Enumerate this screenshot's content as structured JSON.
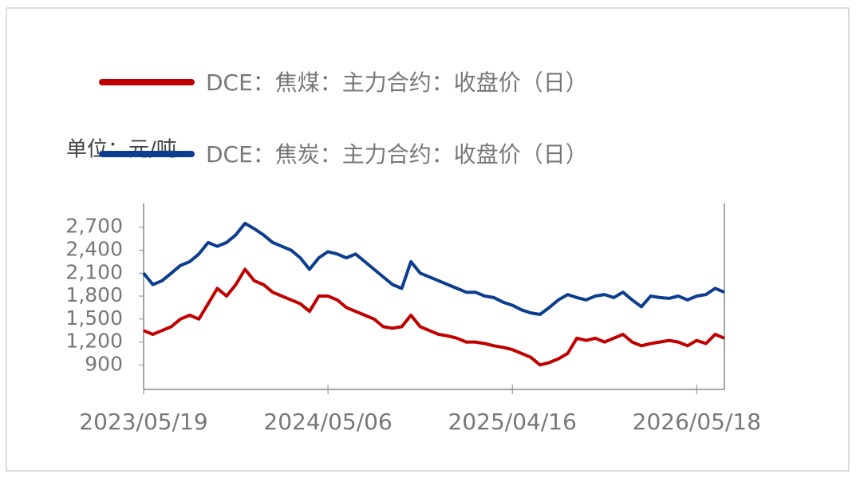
{
  "chart_data": {
    "type": "line",
    "y_label": "单位：元/吨",
    "categories": [
      "2023/05/19",
      null,
      null,
      null,
      null,
      null,
      null,
      null,
      null,
      null,
      null,
      null,
      null,
      null,
      null,
      null,
      null,
      null,
      null,
      null,
      "2024/05/06",
      null,
      null,
      null,
      null,
      null,
      null,
      null,
      null,
      null,
      null,
      null,
      null,
      null,
      null,
      null,
      null,
      null,
      null,
      null,
      "2025/04/16",
      null,
      null,
      null,
      null,
      null,
      null,
      null,
      null,
      null,
      null,
      null,
      null,
      null,
      null,
      null,
      null,
      null,
      null,
      null,
      "2026/05/18",
      null,
      null,
      null
    ],
    "series": [
      {
        "name": "DCE：焦煤：主力合约：收盘价（日）",
        "color": "#c00000",
        "values": [
          1350,
          1300,
          1350,
          1400,
          1500,
          1550,
          1500,
          1700,
          1900,
          1800,
          1950,
          2150,
          2000,
          1950,
          1850,
          1800,
          1750,
          1700,
          1600,
          1800,
          1800,
          1750,
          1650,
          1600,
          1550,
          1500,
          1400,
          1380,
          1400,
          1550,
          1400,
          1350,
          1300,
          1280,
          1250,
          1200,
          1200,
          1180,
          1150,
          1130,
          1100,
          1050,
          1000,
          900,
          930,
          980,
          1050,
          1250,
          1220,
          1250,
          1200,
          1250,
          1300,
          1200,
          1150,
          1180,
          1200,
          1220,
          1200,
          1150,
          1220,
          1180,
          1300,
          1250
        ]
      },
      {
        "name": "DCE：焦炭：主力合约：收盘价（日）",
        "color": "#0c3d8f",
        "values": [
          2100,
          1950,
          2000,
          2100,
          2200,
          2250,
          2350,
          2500,
          2450,
          2500,
          2600,
          2750,
          2680,
          2600,
          2500,
          2450,
          2400,
          2300,
          2150,
          2300,
          2380,
          2350,
          2300,
          2350,
          2250,
          2150,
          2050,
          1950,
          1900,
          2250,
          2100,
          2050,
          2000,
          1950,
          1900,
          1850,
          1850,
          1800,
          1780,
          1720,
          1680,
          1620,
          1580,
          1560,
          1650,
          1750,
          1820,
          1780,
          1750,
          1800,
          1820,
          1780,
          1850,
          1750,
          1660,
          1800,
          1780,
          1770,
          1800,
          1750,
          1800,
          1820,
          1900,
          1850
        ]
      }
    ],
    "ylim": [
      580,
      3010
    ],
    "yticks": [
      900,
      {
        "value": 1200,
        "label": "1,200"
      },
      {
        "value": 1500,
        "label": "1,500"
      },
      {
        "value": 1800,
        "label": "1,800"
      },
      {
        "value": 2100,
        "label": "2,100"
      },
      {
        "value": 2400,
        "label": "2,400"
      },
      {
        "value": 2700,
        "label": "2,700"
      }
    ]
  }
}
